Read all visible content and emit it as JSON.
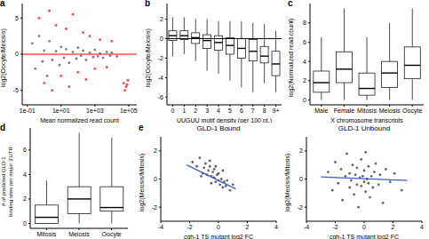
{
  "chart_data": [
    {
      "type": "scatter",
      "panel_label": "a",
      "x_label": "Mean normalized read count",
      "y_label": "log2(Oocyte/Meiosis)",
      "log": "x",
      "xlim": [
        0.05,
        300000
      ],
      "xticks": [
        {
          "value": 0.1,
          "label": "1e-01"
        },
        {
          "value": 10,
          "label": "1e+01"
        },
        {
          "value": 1000,
          "label": "1e+03"
        },
        {
          "value": 100000,
          "label": "1e+05"
        }
      ],
      "ylim": [
        -7,
        7
      ],
      "yticks": [
        -5,
        0,
        5
      ],
      "reference_line": {
        "value": 0,
        "color": "#ff0000"
      },
      "series": [
        {
          "color": "#505050",
          "x": [
            0.2,
            0.3,
            0.5,
            0.8,
            1,
            1.5,
            2,
            3,
            5,
            8,
            10,
            15,
            20,
            30,
            50,
            80,
            100,
            150,
            200,
            300,
            500,
            800,
            1000,
            1500,
            2000,
            3000,
            5000,
            8000,
            10000,
            20000
          ],
          "values": [
            1.5,
            -2,
            2.5,
            -1,
            0.5,
            -3,
            1.8,
            -0.8,
            0.4,
            -1.5,
            1,
            -0.5,
            0.7,
            -1.2,
            0.3,
            -0.6,
            0.9,
            -0.2,
            0.5,
            -0.8,
            0.2,
            -0.4,
            0.6,
            -0.3,
            0.1,
            -0.5,
            0.3,
            -0.2,
            0.2,
            -0.3
          ]
        },
        {
          "color": "#ff0000",
          "x": [
            0.5,
            1,
            2,
            3,
            5,
            10,
            20,
            30,
            50,
            100,
            200,
            300,
            500,
            1000,
            2000,
            5000,
            10000,
            50000,
            60000,
            70000,
            80000,
            90000
          ],
          "values": [
            5,
            -4,
            6,
            -5,
            4,
            -3,
            3.5,
            -4.5,
            5.5,
            -2.5,
            3,
            -3.5,
            2.5,
            -2,
            2,
            -1.8,
            1.8,
            -4,
            -5,
            -4.5,
            -4.2,
            -3.6
          ]
        }
      ]
    },
    {
      "type": "box",
      "panel_label": "b",
      "x_label": "UUGUU motif density (per 100 nt.)",
      "y_label": "log2(Oocyte/Meiosis)",
      "categories": [
        "0",
        "1",
        "2",
        "3",
        "4",
        "5",
        "6",
        "7",
        "8",
        "9+"
      ],
      "boxes": [
        {
          "min": -1.8,
          "q1": -0.2,
          "median": 0.3,
          "q3": 0.8,
          "max": 2.2
        },
        {
          "min": -1.6,
          "q1": -0.1,
          "median": 0.3,
          "q3": 0.8,
          "max": 2.2
        },
        {
          "min": -2.3,
          "q1": -0.5,
          "median": 0.1,
          "q3": 0.6,
          "max": 2
        },
        {
          "min": -3.3,
          "q1": -1,
          "median": -0.2,
          "q3": 0.4,
          "max": 2
        },
        {
          "min": -3.6,
          "q1": -1.2,
          "median": -0.4,
          "q3": 0.3,
          "max": 1.8
        },
        {
          "min": -4.3,
          "q1": -1.6,
          "median": -0.7,
          "q3": 0.1,
          "max": 1.8
        },
        {
          "min": -5,
          "q1": -2,
          "median": -1,
          "q3": 0,
          "max": 1.8
        },
        {
          "min": -5.5,
          "q1": -2.3,
          "median": -1.3,
          "q3": -0.1,
          "max": 1.6
        },
        {
          "min": -4.6,
          "q1": -2.5,
          "median": -1.8,
          "q3": -0.8,
          "max": 1.5
        },
        {
          "min": -5.5,
          "q1": -3.8,
          "median": -2.6,
          "q3": -1.3,
          "max": 0.8
        }
      ],
      "ylim": [
        -6.8,
        3.6
      ],
      "yticks": [
        -6,
        -4,
        -2,
        0,
        2
      ],
      "reference_line": {
        "value": 0,
        "color": "#000000"
      }
    },
    {
      "type": "box",
      "panel_label": "c",
      "x_label": "X chromosome transcripts",
      "y_label": "log2(Normalized read count)",
      "categories": [
        "Male",
        "Female",
        "Mitosis",
        "Meiosis",
        "Oocyte"
      ],
      "boxes": [
        {
          "min": 0,
          "q1": 0.8,
          "median": 1.8,
          "q3": 3,
          "max": 6.5
        },
        {
          "min": 0,
          "q1": 1.8,
          "median": 3.2,
          "q3": 5,
          "max": 9.5
        },
        {
          "min": 0,
          "q1": 0.5,
          "median": 1.2,
          "q3": 2.8,
          "max": 6.5
        },
        {
          "min": 0,
          "q1": 1.3,
          "median": 2.8,
          "q3": 4,
          "max": 8
        },
        {
          "min": 0,
          "q1": 2.2,
          "median": 3.6,
          "q3": 5.5,
          "max": 9.5
        }
      ],
      "ylim": [
        -0.5,
        10
      ],
      "yticks": [
        0,
        2,
        4,
        6,
        8
      ]
    },
    {
      "type": "box",
      "panel_label": "d",
      "y_label": [
        "# of predicted GLD-1",
        "binding sites per major 3'UTR"
      ],
      "categories": [
        "Mitosis",
        "Meiosis",
        "Oocyte"
      ],
      "boxes": [
        {
          "min": 0,
          "q1": 0,
          "median": 0.5,
          "q3": 1.5,
          "max": 3.5
        },
        {
          "min": 0,
          "q1": 0.8,
          "median": 2,
          "q3": 3,
          "max": 7.4
        },
        {
          "min": 0,
          "q1": 1,
          "median": 1.3,
          "q3": 3,
          "max": 7
        }
      ],
      "ylim": [
        -0.4,
        7.8
      ],
      "yticks": [
        0,
        2,
        4,
        6
      ]
    },
    {
      "type": "scatter",
      "panel_label": "e",
      "title": "GLD-1 Bound",
      "x_label": "cgh-1 TS mutant log2 FC",
      "y_label": "log2(Meiosis/Mitosis)",
      "xlim": [
        -4,
        4
      ],
      "xticks": [
        -4,
        -2,
        0,
        2,
        4
      ],
      "ylim": [
        -3,
        3
      ],
      "yticks": [
        -2,
        0,
        2
      ],
      "series": [
        {
          "color": "#333333",
          "x": [
            -1.8,
            -1.5,
            -1.3,
            -1.1,
            -1,
            -0.9,
            -0.8,
            -0.7,
            -0.6,
            -0.5,
            -0.5,
            -0.4,
            -0.3,
            -0.3,
            -0.2,
            -0.1,
            0,
            0,
            0.1,
            0.2,
            0.3,
            0.4,
            0.5,
            0.6,
            0.8,
            1.0,
            -1.2,
            -0.6,
            -0.2,
            0.3
          ],
          "values": [
            1.2,
            0.9,
            1.5,
            0.4,
            0.8,
            1.1,
            0.3,
            0.6,
            0.9,
            0.2,
            -0.3,
            0.5,
            0.1,
            0.7,
            -0.2,
            0.3,
            -0.1,
            0.4,
            -0.4,
            0,
            -0.6,
            -0.2,
            -0.5,
            -0.1,
            -0.8,
            -0.4,
            0.2,
            1.3,
            0.9,
            0.6
          ]
        }
      ],
      "fit_line": {
        "color": "#3a5fcd",
        "x": [
          -2.2,
          1.2
        ],
        "values": [
          1.0,
          -0.7
        ]
      }
    },
    {
      "type": "scatter",
      "title": "GLD-1 Unbound",
      "x_label": "cgh-1 TS mutant log2 FC",
      "y_label": "log2(Meiosis/Mitosis)",
      "xlim": [
        -4,
        4
      ],
      "xticks": [
        -4,
        -2,
        0,
        2,
        4
      ],
      "ylim": [
        -3,
        3
      ],
      "yticks": [
        -2,
        0,
        2
      ],
      "series": [
        {
          "color": "#333333",
          "x": [
            -2.5,
            -2.2,
            -2,
            -1.8,
            -1.6,
            -1.5,
            -1.3,
            -1.2,
            -1,
            -1,
            -0.9,
            -0.8,
            -0.7,
            -0.6,
            -0.5,
            -0.5,
            -0.4,
            -0.3,
            -0.2,
            -0.2,
            -0.1,
            0,
            0,
            0.1,
            0.1,
            0.2,
            0.3,
            0.3,
            0.4,
            0.5,
            0.6,
            0.7,
            0.8,
            1,
            1.1,
            1.3,
            1.5,
            1.8,
            2.1,
            2.6
          ],
          "values": [
            0.5,
            -0.8,
            1.2,
            -0.3,
            0.7,
            -1.5,
            0.2,
            1.8,
            -0.6,
            0.4,
            -0.1,
            1,
            -1.1,
            0.3,
            -0.4,
            0.8,
            -2,
            0.1,
            1.4,
            -0.5,
            0.2,
            -0.2,
            0.6,
            -0.9,
            1.9,
            0,
            -0.3,
            0.9,
            -1.3,
            0.2,
            -0.6,
            0.5,
            1.1,
            -0.4,
            0.3,
            -1.7,
            0.7,
            -0.2,
            0.4,
            -0.8
          ]
        }
      ],
      "fit_line": {
        "color": "#3a5fcd",
        "x": [
          -3,
          3
        ],
        "values": [
          0.15,
          -0.1
        ]
      }
    }
  ]
}
